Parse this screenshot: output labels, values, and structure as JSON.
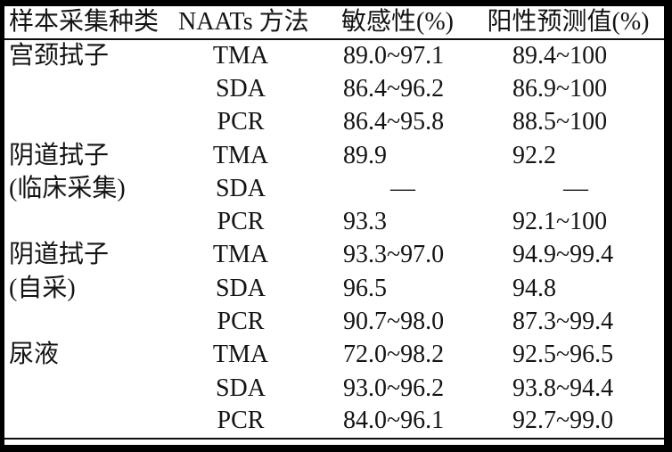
{
  "colors": {
    "background": "#ffffff",
    "text": "#141414",
    "rule": "#000000"
  },
  "table": {
    "headers": {
      "sample_type": "样本采集种类",
      "method": "NAATs 方法",
      "sensitivity": "敏感性(%)",
      "ppv": "阳性预测值(%)"
    },
    "rows": [
      {
        "sample": "宫颈拭子",
        "method": "TMA",
        "sensitivity": "89.0~97.1",
        "ppv": "89.4~100"
      },
      {
        "sample": "",
        "method": "SDA",
        "sensitivity": "86.4~96.2",
        "ppv": "86.9~100"
      },
      {
        "sample": "",
        "method": "PCR",
        "sensitivity": "86.4~95.8",
        "ppv": "88.5~100"
      },
      {
        "sample": "阴道拭子",
        "method": "TMA",
        "sensitivity": "89.9",
        "ppv": "92.2"
      },
      {
        "sample": "(临床采集)",
        "method": "SDA",
        "sensitivity": "—",
        "ppv": "—"
      },
      {
        "sample": "",
        "method": "PCR",
        "sensitivity": "93.3",
        "ppv": "92.1~100"
      },
      {
        "sample": "阴道拭子",
        "method": "TMA",
        "sensitivity": "93.3~97.0",
        "ppv": "94.9~99.4"
      },
      {
        "sample": "(自采)",
        "method": "SDA",
        "sensitivity": "96.5",
        "ppv": "94.8"
      },
      {
        "sample": "",
        "method": "PCR",
        "sensitivity": "90.7~98.0",
        "ppv": "87.3~99.4"
      },
      {
        "sample": "尿液",
        "method": "TMA",
        "sensitivity": "72.0~98.2",
        "ppv": "92.5~96.5"
      },
      {
        "sample": "",
        "method": "SDA",
        "sensitivity": "93.0~96.2",
        "ppv": "93.8~94.4"
      },
      {
        "sample": "",
        "method": "PCR",
        "sensitivity": "84.0~96.1",
        "ppv": "92.7~99.0"
      }
    ]
  }
}
